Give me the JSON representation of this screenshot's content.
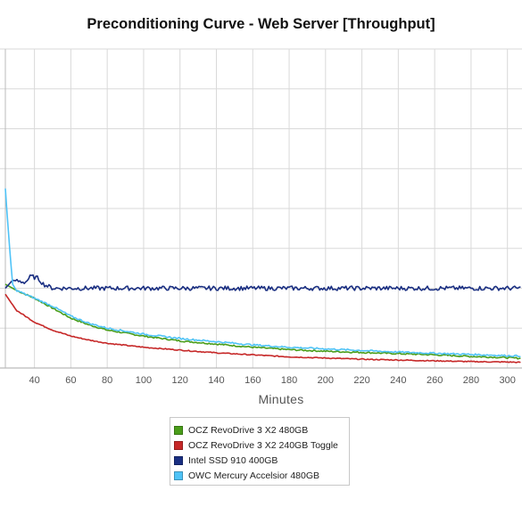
{
  "chart_data": {
    "type": "line",
    "title": "Preconditioning Curve - Web Server [Throughput]",
    "xlabel": "Minutes",
    "ylabel": "",
    "x_ticks": [
      40,
      60,
      80,
      100,
      120,
      140,
      160,
      180,
      200,
      220,
      240,
      260,
      280,
      300
    ],
    "xlim": [
      24,
      308
    ],
    "ylim": [
      0,
      8
    ],
    "grid": true,
    "legend_position": "bottom",
    "series": [
      {
        "name": "OCZ RevoDrive 3 X2 480GB",
        "color": "#4a9d1a",
        "x": [
          24,
          30,
          40,
          50,
          60,
          70,
          80,
          100,
          120,
          140,
          160,
          180,
          200,
          220,
          240,
          260,
          280,
          300,
          308
        ],
        "y": [
          2.1,
          1.95,
          1.75,
          1.5,
          1.25,
          1.08,
          0.95,
          0.8,
          0.68,
          0.6,
          0.52,
          0.46,
          0.42,
          0.39,
          0.36,
          0.33,
          0.29,
          0.26,
          0.24
        ]
      },
      {
        "name": "OCZ RevoDrive 3 X2 240GB Toggle",
        "color": "#c62828",
        "x": [
          24,
          30,
          40,
          50,
          60,
          70,
          80,
          100,
          120,
          140,
          160,
          180,
          200,
          220,
          240,
          260,
          280,
          300,
          308
        ],
        "y": [
          1.85,
          1.45,
          1.15,
          0.95,
          0.8,
          0.7,
          0.62,
          0.52,
          0.45,
          0.38,
          0.33,
          0.28,
          0.25,
          0.22,
          0.2,
          0.18,
          0.16,
          0.15,
          0.14
        ]
      },
      {
        "name": "Intel SSD 910 400GB",
        "color": "#1a2f82",
        "x": [
          24,
          28,
          35,
          38,
          42,
          45,
          50,
          60,
          80,
          100,
          120,
          140,
          160,
          180,
          200,
          220,
          240,
          260,
          280,
          300,
          308
        ],
        "y": [
          2.0,
          2.2,
          2.15,
          2.3,
          2.25,
          2.1,
          2.0,
          2.0,
          2.0,
          2.0,
          2.0,
          2.0,
          2.0,
          2.0,
          2.0,
          2.0,
          2.0,
          2.0,
          2.0,
          2.0,
          2.0
        ]
      },
      {
        "name": "OWC Mercury Accelsior 480GB",
        "color": "#4fc3f7",
        "x": [
          24,
          26,
          28,
          30,
          40,
          50,
          60,
          70,
          80,
          100,
          120,
          140,
          160,
          180,
          200,
          220,
          240,
          260,
          280,
          300,
          308
        ],
        "y": [
          4.5,
          3.2,
          2.1,
          1.95,
          1.75,
          1.55,
          1.3,
          1.12,
          1.0,
          0.85,
          0.74,
          0.66,
          0.58,
          0.52,
          0.48,
          0.44,
          0.4,
          0.37,
          0.34,
          0.31,
          0.3
        ]
      }
    ]
  }
}
